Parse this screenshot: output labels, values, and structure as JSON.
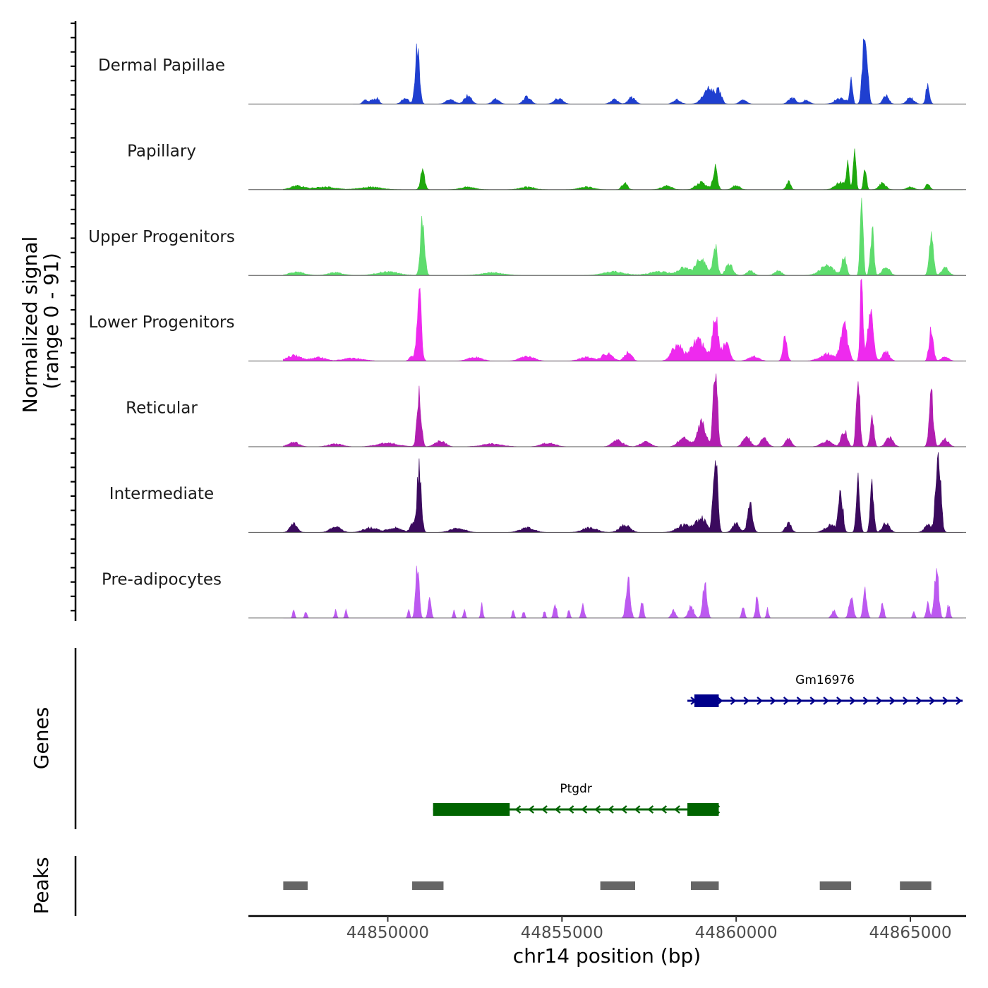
{
  "chart_data": {
    "type": "area",
    "title": "",
    "xlabel": "chr14 position (bp)",
    "xlim": [
      44846000,
      44866600
    ],
    "x_ticks": [
      44850000,
      44855000,
      44860000,
      44865000
    ],
    "x_tick_labels": [
      "44850000",
      "44855000",
      "44860000",
      "44865000"
    ],
    "coverage_panel": {
      "ylabel": "Normalized signal",
      "ylabel_range": "(range 0 - 91)",
      "ylim": [
        0,
        91
      ]
    },
    "series": [
      {
        "name": "Dermal Papillae",
        "color": "#1F3FD0",
        "data_start": 44849000,
        "data_end": 44865800,
        "peaks": [
          [
            44849350,
            5,
            60
          ],
          [
            44849550,
            5,
            60
          ],
          [
            44849700,
            6,
            60
          ],
          [
            44850500,
            6,
            100
          ],
          [
            44850850,
            62,
            60
          ],
          [
            44851800,
            5,
            120
          ],
          [
            44852300,
            9,
            100
          ],
          [
            44853100,
            5,
            100
          ],
          [
            44854000,
            8,
            100
          ],
          [
            44854900,
            6,
            120
          ],
          [
            44856500,
            5,
            100
          ],
          [
            44857000,
            7,
            100
          ],
          [
            44858300,
            5,
            100
          ],
          [
            44859200,
            18,
            150
          ],
          [
            44859500,
            13,
            80
          ],
          [
            44860200,
            4,
            100
          ],
          [
            44861600,
            7,
            100
          ],
          [
            44862000,
            4,
            100
          ],
          [
            44863000,
            7,
            150
          ],
          [
            44863300,
            30,
            40
          ],
          [
            44863650,
            55,
            50
          ],
          [
            44863750,
            40,
            50
          ],
          [
            44864300,
            10,
            80
          ],
          [
            44865000,
            7,
            100
          ],
          [
            44865500,
            22,
            50
          ]
        ]
      },
      {
        "name": "Papillary",
        "color": "#1FA80E",
        "data_start": 44847000,
        "data_end": 44866500,
        "peaks": [
          [
            44847400,
            4,
            200
          ],
          [
            44848200,
            3,
            300
          ],
          [
            44849500,
            3,
            300
          ],
          [
            44851000,
            20,
            60
          ],
          [
            44852300,
            3,
            200
          ],
          [
            44854000,
            3,
            200
          ],
          [
            44855700,
            3,
            200
          ],
          [
            44856800,
            7,
            80
          ],
          [
            44858000,
            4,
            150
          ],
          [
            44859000,
            8,
            150
          ],
          [
            44859400,
            25,
            60
          ],
          [
            44860000,
            5,
            100
          ],
          [
            44861500,
            9,
            60
          ],
          [
            44863000,
            8,
            150
          ],
          [
            44863200,
            25,
            40
          ],
          [
            44863400,
            40,
            40
          ],
          [
            44863700,
            25,
            40
          ],
          [
            44864200,
            7,
            100
          ],
          [
            44865000,
            3,
            100
          ],
          [
            44865500,
            6,
            60
          ]
        ]
      },
      {
        "name": "Upper Progenitors",
        "color": "#5EDC6D",
        "data_start": 44847000,
        "data_end": 44866500,
        "peaks": [
          [
            44847400,
            4,
            200
          ],
          [
            44848500,
            3,
            200
          ],
          [
            44850000,
            4,
            300
          ],
          [
            44851000,
            60,
            60
          ],
          [
            44853000,
            3,
            300
          ],
          [
            44856500,
            4,
            300
          ],
          [
            44857800,
            4,
            300
          ],
          [
            44858500,
            8,
            150
          ],
          [
            44859000,
            18,
            150
          ],
          [
            44859400,
            33,
            60
          ],
          [
            44859800,
            12,
            100
          ],
          [
            44860400,
            5,
            100
          ],
          [
            44861200,
            5,
            100
          ],
          [
            44862600,
            10,
            200
          ],
          [
            44863100,
            22,
            60
          ],
          [
            44863600,
            95,
            40
          ],
          [
            44863900,
            50,
            50
          ],
          [
            44864300,
            10,
            100
          ],
          [
            44865600,
            42,
            60
          ],
          [
            44866000,
            8,
            100
          ]
        ]
      },
      {
        "name": "Lower Progenitors",
        "color": "#EE2AEE",
        "data_start": 44847000,
        "data_end": 44866500,
        "peaks": [
          [
            44847300,
            6,
            200
          ],
          [
            44848000,
            4,
            200
          ],
          [
            44849000,
            3,
            300
          ],
          [
            44850700,
            5,
            80
          ],
          [
            44850900,
            80,
            60
          ],
          [
            44852500,
            4,
            200
          ],
          [
            44854000,
            5,
            200
          ],
          [
            44855700,
            4,
            200
          ],
          [
            44856300,
            8,
            150
          ],
          [
            44856900,
            10,
            100
          ],
          [
            44858300,
            18,
            150
          ],
          [
            44858900,
            22,
            200
          ],
          [
            44859400,
            48,
            80
          ],
          [
            44859700,
            20,
            100
          ],
          [
            44860500,
            5,
            150
          ],
          [
            44861400,
            24,
            60
          ],
          [
            44862600,
            8,
            200
          ],
          [
            44863100,
            38,
            100
          ],
          [
            44863600,
            88,
            40
          ],
          [
            44863850,
            50,
            80
          ],
          [
            44864300,
            10,
            100
          ],
          [
            44865600,
            35,
            60
          ],
          [
            44866000,
            5,
            100
          ]
        ]
      },
      {
        "name": "Reticular",
        "color": "#B11EB0",
        "data_start": 44847000,
        "data_end": 44866500,
        "peaks": [
          [
            44847300,
            5,
            150
          ],
          [
            44848500,
            3,
            200
          ],
          [
            44850000,
            4,
            300
          ],
          [
            44850900,
            55,
            60
          ],
          [
            44851500,
            6,
            150
          ],
          [
            44853000,
            3,
            300
          ],
          [
            44854600,
            4,
            200
          ],
          [
            44856600,
            7,
            150
          ],
          [
            44857400,
            5,
            150
          ],
          [
            44858500,
            10,
            150
          ],
          [
            44859000,
            25,
            120
          ],
          [
            44859400,
            88,
            60
          ],
          [
            44860300,
            12,
            100
          ],
          [
            44860800,
            10,
            100
          ],
          [
            44861500,
            10,
            80
          ],
          [
            44862600,
            6,
            150
          ],
          [
            44863100,
            18,
            80
          ],
          [
            44863500,
            75,
            50
          ],
          [
            44863900,
            38,
            50
          ],
          [
            44864400,
            10,
            100
          ],
          [
            44865600,
            55,
            60
          ],
          [
            44866000,
            8,
            100
          ]
        ]
      },
      {
        "name": "Intermediate",
        "color": "#3B0A5E",
        "data_start": 44847000,
        "data_end": 44866500,
        "peaks": [
          [
            44847300,
            10,
            100
          ],
          [
            44848500,
            6,
            150
          ],
          [
            44849500,
            5,
            200
          ],
          [
            44850200,
            5,
            200
          ],
          [
            44850700,
            10,
            60
          ],
          [
            44850900,
            70,
            60
          ],
          [
            44852000,
            5,
            200
          ],
          [
            44854000,
            5,
            200
          ],
          [
            44855800,
            5,
            200
          ],
          [
            44856800,
            8,
            150
          ],
          [
            44858500,
            8,
            200
          ],
          [
            44859000,
            15,
            150
          ],
          [
            44859400,
            88,
            60
          ],
          [
            44860000,
            10,
            100
          ],
          [
            44860400,
            30,
            70
          ],
          [
            44861500,
            10,
            80
          ],
          [
            44862700,
            8,
            150
          ],
          [
            44863000,
            45,
            60
          ],
          [
            44863500,
            55,
            50
          ],
          [
            44863900,
            50,
            50
          ],
          [
            44864300,
            10,
            100
          ],
          [
            44865500,
            8,
            100
          ],
          [
            44865800,
            85,
            70
          ]
        ]
      },
      {
        "name": "Pre-adipocytes",
        "color": "#BC59F0",
        "data_start": 44847000,
        "data_end": 44866500,
        "peaks": [
          [
            44847300,
            8,
            30
          ],
          [
            44847650,
            8,
            30
          ],
          [
            44848500,
            8,
            30
          ],
          [
            44848800,
            8,
            30
          ],
          [
            44850600,
            8,
            30
          ],
          [
            44850850,
            55,
            50
          ],
          [
            44851200,
            25,
            40
          ],
          [
            44851900,
            8,
            30
          ],
          [
            44852200,
            8,
            30
          ],
          [
            44852700,
            15,
            30
          ],
          [
            44853600,
            8,
            30
          ],
          [
            44853900,
            8,
            30
          ],
          [
            44854500,
            8,
            30
          ],
          [
            44854800,
            18,
            40
          ],
          [
            44855200,
            10,
            30
          ],
          [
            44855600,
            15,
            40
          ],
          [
            44856900,
            40,
            60
          ],
          [
            44857300,
            18,
            40
          ],
          [
            44858200,
            8,
            60
          ],
          [
            44858700,
            12,
            80
          ],
          [
            44859100,
            35,
            60
          ],
          [
            44860200,
            15,
            40
          ],
          [
            44860600,
            22,
            40
          ],
          [
            44860900,
            10,
            30
          ],
          [
            44862800,
            8,
            60
          ],
          [
            44863300,
            22,
            60
          ],
          [
            44863700,
            30,
            50
          ],
          [
            44864200,
            18,
            40
          ],
          [
            44865100,
            8,
            30
          ],
          [
            44865500,
            20,
            40
          ],
          [
            44865750,
            55,
            60
          ],
          [
            44866100,
            15,
            40
          ]
        ]
      }
    ],
    "genes_panel": {
      "label": "Genes",
      "genes": [
        {
          "name": "Gm16976",
          "strand": "+",
          "color": "#00008B",
          "start": 44858600,
          "end": 44866500,
          "exons": [
            [
              44858800,
              44859500
            ]
          ]
        },
        {
          "name": "Ptgdr",
          "strand": "-",
          "color": "#006400",
          "start": 44851300,
          "end": 44859500,
          "exons": [
            [
              44851300,
              44853500
            ],
            [
              44858600,
              44859500
            ]
          ]
        }
      ]
    },
    "peaks_panel": {
      "label": "Peaks",
      "color": "#666666",
      "regions": [
        [
          44847000,
          44847700
        ],
        [
          44850700,
          44851600
        ],
        [
          44856100,
          44857100
        ],
        [
          44858700,
          44859500
        ],
        [
          44862400,
          44863300
        ],
        [
          44864700,
          44865600
        ]
      ]
    }
  }
}
